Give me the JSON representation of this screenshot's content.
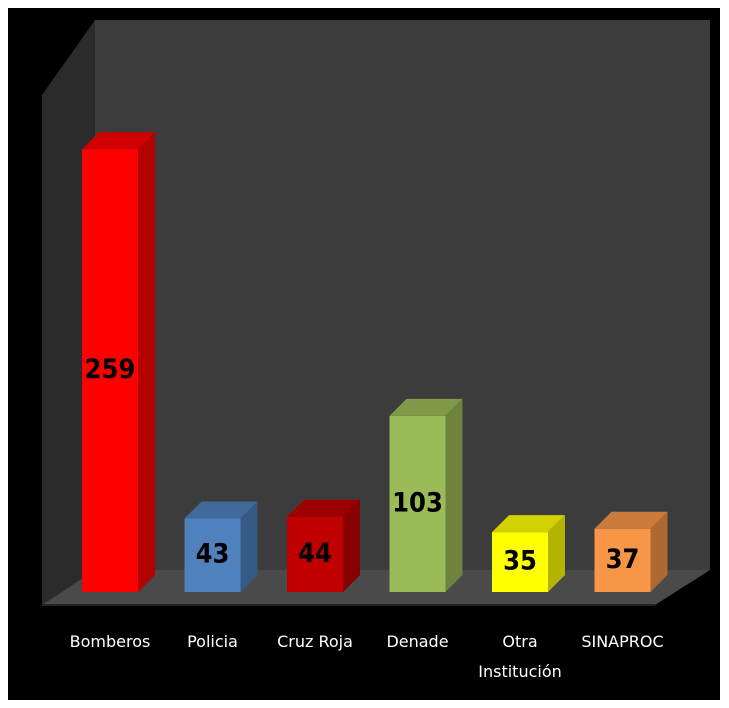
{
  "chart_data": {
    "type": "bar",
    "categories": [
      "Bomberos",
      "Policia",
      "Cruz Roja",
      "Denade",
      "Otra Institución",
      "SINAPROC"
    ],
    "values": [
      259,
      43,
      44,
      103,
      35,
      37
    ],
    "colors": [
      "#ff0000",
      "#4f81bd",
      "#c00000",
      "#9bbb59",
      "#ffff00",
      "#f79646"
    ],
    "ylim": [
      0,
      320
    ]
  }
}
